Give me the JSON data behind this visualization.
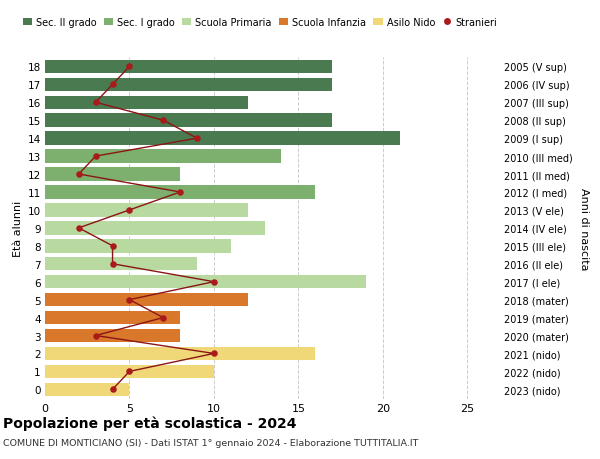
{
  "ages": [
    18,
    17,
    16,
    15,
    14,
    13,
    12,
    11,
    10,
    9,
    8,
    7,
    6,
    5,
    4,
    3,
    2,
    1,
    0
  ],
  "right_labels": [
    "2005 (V sup)",
    "2006 (IV sup)",
    "2007 (III sup)",
    "2008 (II sup)",
    "2009 (I sup)",
    "2010 (III med)",
    "2011 (II med)",
    "2012 (I med)",
    "2013 (V ele)",
    "2014 (IV ele)",
    "2015 (III ele)",
    "2016 (II ele)",
    "2017 (I ele)",
    "2018 (mater)",
    "2019 (mater)",
    "2020 (mater)",
    "2021 (nido)",
    "2022 (nido)",
    "2023 (nido)"
  ],
  "bar_values": [
    17,
    17,
    12,
    17,
    21,
    14,
    8,
    16,
    12,
    13,
    11,
    9,
    19,
    12,
    8,
    8,
    16,
    10,
    5
  ],
  "bar_colors": [
    "#4a7a50",
    "#4a7a50",
    "#4a7a50",
    "#4a7a50",
    "#4a7a50",
    "#7daf6e",
    "#7daf6e",
    "#7daf6e",
    "#b8d9a0",
    "#b8d9a0",
    "#b8d9a0",
    "#b8d9a0",
    "#b8d9a0",
    "#d9782a",
    "#d9782a",
    "#d9782a",
    "#f0d878",
    "#f0d878",
    "#f0d878"
  ],
  "stranieri_values": [
    5,
    4,
    3,
    7,
    9,
    3,
    2,
    8,
    5,
    2,
    4,
    4,
    10,
    5,
    7,
    3,
    10,
    5,
    4
  ],
  "legend_labels": [
    "Sec. II grado",
    "Sec. I grado",
    "Scuola Primaria",
    "Scuola Infanzia",
    "Asilo Nido",
    "Stranieri"
  ],
  "legend_colors": [
    "#4a7a50",
    "#7daf6e",
    "#b8d9a0",
    "#d9782a",
    "#f0d878",
    "#aa1a1a"
  ],
  "title": "Popolazione per età scolastica - 2024",
  "subtitle": "COMUNE DI MONTICIANO (SI) - Dati ISTAT 1° gennaio 2024 - Elaborazione TUTTITALIA.IT",
  "ylabel_left": "Età alunni",
  "ylabel_right": "Anni di nascita",
  "xlim": [
    0,
    27
  ],
  "ylim_min": -0.55,
  "ylim_max": 18.55,
  "bg_color": "#ffffff",
  "grid_color": "#cccccc",
  "bar_height": 0.75
}
